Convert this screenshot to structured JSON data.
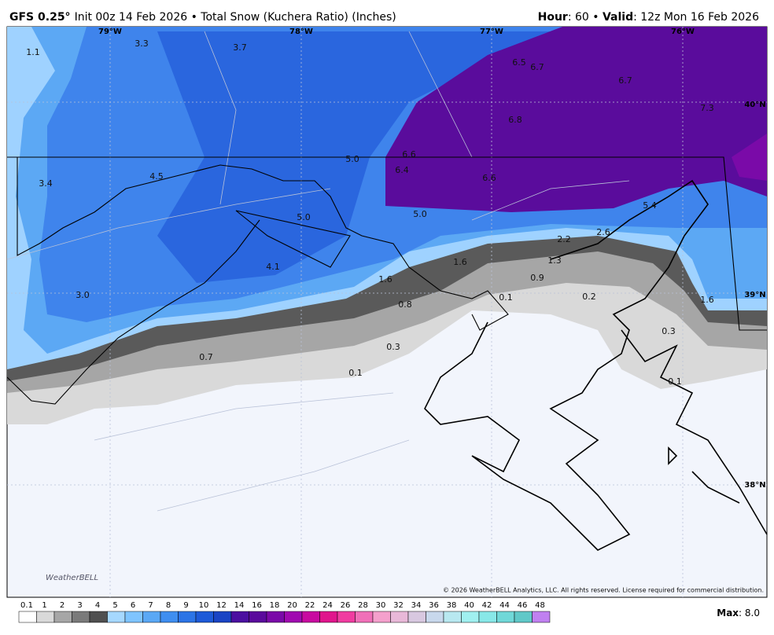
{
  "header": {
    "model": "GFS 0.25°",
    "text": "Init 00z 14 Feb 2026 • Total Snow (Kuchera Ratio) (Inches)",
    "hour_label": "Hour",
    "hour_text": ": 60 • ",
    "valid_label": "Valid",
    "valid_text": ": 12z Mon 16 Feb 2026"
  },
  "map": {
    "lon_labels": [
      "79°W",
      "78°W",
      "77°W",
      "76°W"
    ],
    "lat_labels": [
      "40°N",
      "39°N",
      "38°N"
    ],
    "snow_labels": [
      "1.1",
      "3.3",
      "3.7",
      "6.5",
      "6.7",
      "6.7",
      "7.3",
      "6.8",
      "5.0",
      "6.6",
      "6.4",
      "6.6",
      "3.4",
      "4.5",
      "5.0",
      "5.0",
      "5.4",
      "2.2",
      "2.6",
      "1.3",
      "1.6",
      "4.1",
      "0.9",
      "1.6",
      "3.0",
      "0.1",
      "0.2",
      "1.6",
      "0.8",
      "0.3",
      "0.3",
      "0.7",
      "0.1",
      "0.1"
    ],
    "logo": "WeatherBELL",
    "copyright": "© 2026 WeatherBELL Analytics, LLC. All rights reserved. License required for commercial distribution."
  },
  "colorbar": {
    "labels": [
      "0.1",
      "1",
      "2",
      "3",
      "4",
      "5",
      "6",
      "7",
      "8",
      "9",
      "10",
      "12",
      "14",
      "16",
      "18",
      "20",
      "22",
      "24",
      "26",
      "28",
      "30",
      "32",
      "34",
      "36",
      "38",
      "40",
      "42",
      "44",
      "46",
      "48"
    ],
    "colors": [
      "#ffffff",
      "#d9d9d9",
      "#a6a6a6",
      "#7a7a7a",
      "#4f4f4f",
      "#a6d8ff",
      "#7fc4ff",
      "#5aa8f5",
      "#3f8ef0",
      "#2c74e6",
      "#1e5ad8",
      "#1a44c4",
      "#4b0fa0",
      "#5a0a9c",
      "#7a0aa8",
      "#a00ab0",
      "#c80aa0",
      "#e0158c",
      "#f03ca0",
      "#f070b8",
      "#f4a0cc",
      "#e8b8d8",
      "#d8c8e0",
      "#c8d8ec",
      "#b8e8f0",
      "#a0f0f0",
      "#88e8e8",
      "#70d8d8",
      "#60c8c8",
      "#c080f0"
    ]
  },
  "footer": {
    "max_label": "Max",
    "max_text": ": 8.0"
  }
}
